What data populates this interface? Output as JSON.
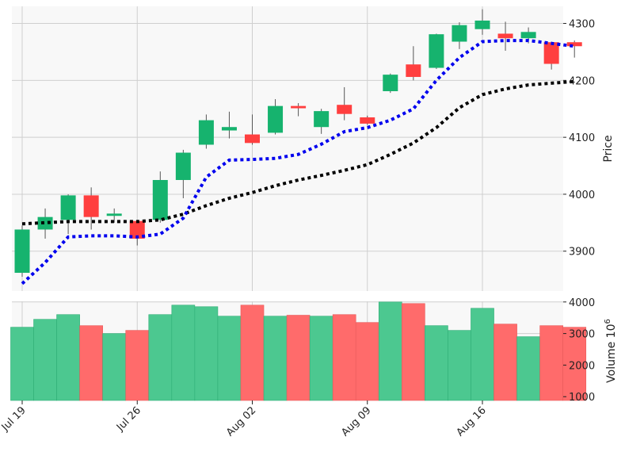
{
  "chart_data": {
    "type": "candlestick",
    "grid": true,
    "colors": {
      "up": "#16b36e",
      "down": "#ff3f3f",
      "vol_up": "#4cc890",
      "vol_down": "#ff6b6b",
      "ma_fast": "#0000ee",
      "ma_slow": "#000000",
      "panel_bg": "#f8f8f8",
      "grid": "#cfcfcf"
    },
    "dates": [
      "2021-07-19",
      "2021-07-20",
      "2021-07-21",
      "2021-07-22",
      "2021-07-23",
      "2021-07-26",
      "2021-07-27",
      "2021-07-28",
      "2021-07-29",
      "2021-07-30",
      "2021-08-02",
      "2021-08-03",
      "2021-08-04",
      "2021-08-05",
      "2021-08-06",
      "2021-08-09",
      "2021-08-10",
      "2021-08-11",
      "2021-08-12",
      "2021-08-13",
      "2021-08-16",
      "2021-08-17",
      "2021-08-18",
      "2021-08-19",
      "2021-08-20"
    ],
    "x_tick_labels": [
      {
        "date": "2021-07-19",
        "label": "Jul 19"
      },
      {
        "date": "2021-07-26",
        "label": "Jul 26"
      },
      {
        "date": "2021-08-02",
        "label": "Aug 02"
      },
      {
        "date": "2021-08-09",
        "label": "Aug 09"
      },
      {
        "date": "2021-08-16",
        "label": "Aug 16"
      }
    ],
    "ohlc": [
      {
        "o": 3862,
        "h": 3945,
        "l": 3855,
        "c": 3938
      },
      {
        "o": 3938,
        "h": 3975,
        "l": 3922,
        "c": 3960
      },
      {
        "o": 3955,
        "h": 4000,
        "l": 3930,
        "c": 3998
      },
      {
        "o": 3998,
        "h": 4012,
        "l": 3938,
        "c": 3960
      },
      {
        "o": 3962,
        "h": 3975,
        "l": 3950,
        "c": 3966
      },
      {
        "o": 3953,
        "h": 3955,
        "l": 3910,
        "c": 3922
      },
      {
        "o": 3955,
        "h": 4040,
        "l": 3950,
        "c": 4025
      },
      {
        "o": 4025,
        "h": 4078,
        "l": 3993,
        "c": 4073
      },
      {
        "o": 4087,
        "h": 4140,
        "l": 4080,
        "c": 4130
      },
      {
        "o": 4112,
        "h": 4145,
        "l": 4098,
        "c": 4118
      },
      {
        "o": 4105,
        "h": 4140,
        "l": 4087,
        "c": 4090
      },
      {
        "o": 4108,
        "h": 4167,
        "l": 4105,
        "c": 4155
      },
      {
        "o": 4155,
        "h": 4160,
        "l": 4137,
        "c": 4151
      },
      {
        "o": 4118,
        "h": 4150,
        "l": 4106,
        "c": 4146
      },
      {
        "o": 4157,
        "h": 4188,
        "l": 4130,
        "c": 4141
      },
      {
        "o": 4135,
        "h": 4138,
        "l": 4122,
        "c": 4124
      },
      {
        "o": 4181,
        "h": 4212,
        "l": 4178,
        "c": 4210
      },
      {
        "o": 4228,
        "h": 4260,
        "l": 4200,
        "c": 4206
      },
      {
        "o": 4222,
        "h": 4282,
        "l": 4220,
        "c": 4281
      },
      {
        "o": 4268,
        "h": 4302,
        "l": 4255,
        "c": 4297
      },
      {
        "o": 4290,
        "h": 4325,
        "l": 4280,
        "c": 4305
      },
      {
        "o": 4282,
        "h": 4303,
        "l": 4252,
        "c": 4274
      },
      {
        "o": 4274,
        "h": 4293,
        "l": 4265,
        "c": 4285
      },
      {
        "o": 4267,
        "h": 4268,
        "l": 4219,
        "c": 4229
      },
      {
        "o": 4267,
        "h": 4270,
        "l": 4240,
        "c": 4260
      }
    ],
    "ma_fast": [
      3843,
      3880,
      3925,
      3927,
      3927,
      3925,
      3930,
      3958,
      4030,
      4060,
      4061,
      4063,
      4070,
      4088,
      4110,
      4117,
      4130,
      4150,
      4200,
      4240,
      4268,
      4270,
      4270,
      4265,
      4260
    ],
    "ma_slow": [
      3948,
      3950,
      3952,
      3952,
      3952,
      3952,
      3955,
      3965,
      3980,
      3993,
      4003,
      4015,
      4025,
      4033,
      4042,
      4052,
      4070,
      4090,
      4117,
      4152,
      4175,
      4185,
      4192,
      4195,
      4198
    ],
    "volume": [
      3200,
      3450,
      3600,
      3250,
      3000,
      3100,
      3600,
      3900,
      3850,
      3550,
      3900,
      3550,
      3580,
      3550,
      3600,
      3350,
      4000,
      3950,
      3250,
      3100,
      3800,
      3300,
      2900,
      3250,
      3200
    ],
    "price_axis": {
      "label": "Price",
      "ticks": [
        3900,
        4000,
        4100,
        4200,
        4300
      ],
      "ylim": [
        3830,
        4330
      ]
    },
    "volume_axis": {
      "label": "Volume  10",
      "exponent": "6",
      "ticks": [
        1000,
        2000,
        3000,
        4000
      ],
      "ylim": [
        880,
        4020
      ]
    }
  }
}
